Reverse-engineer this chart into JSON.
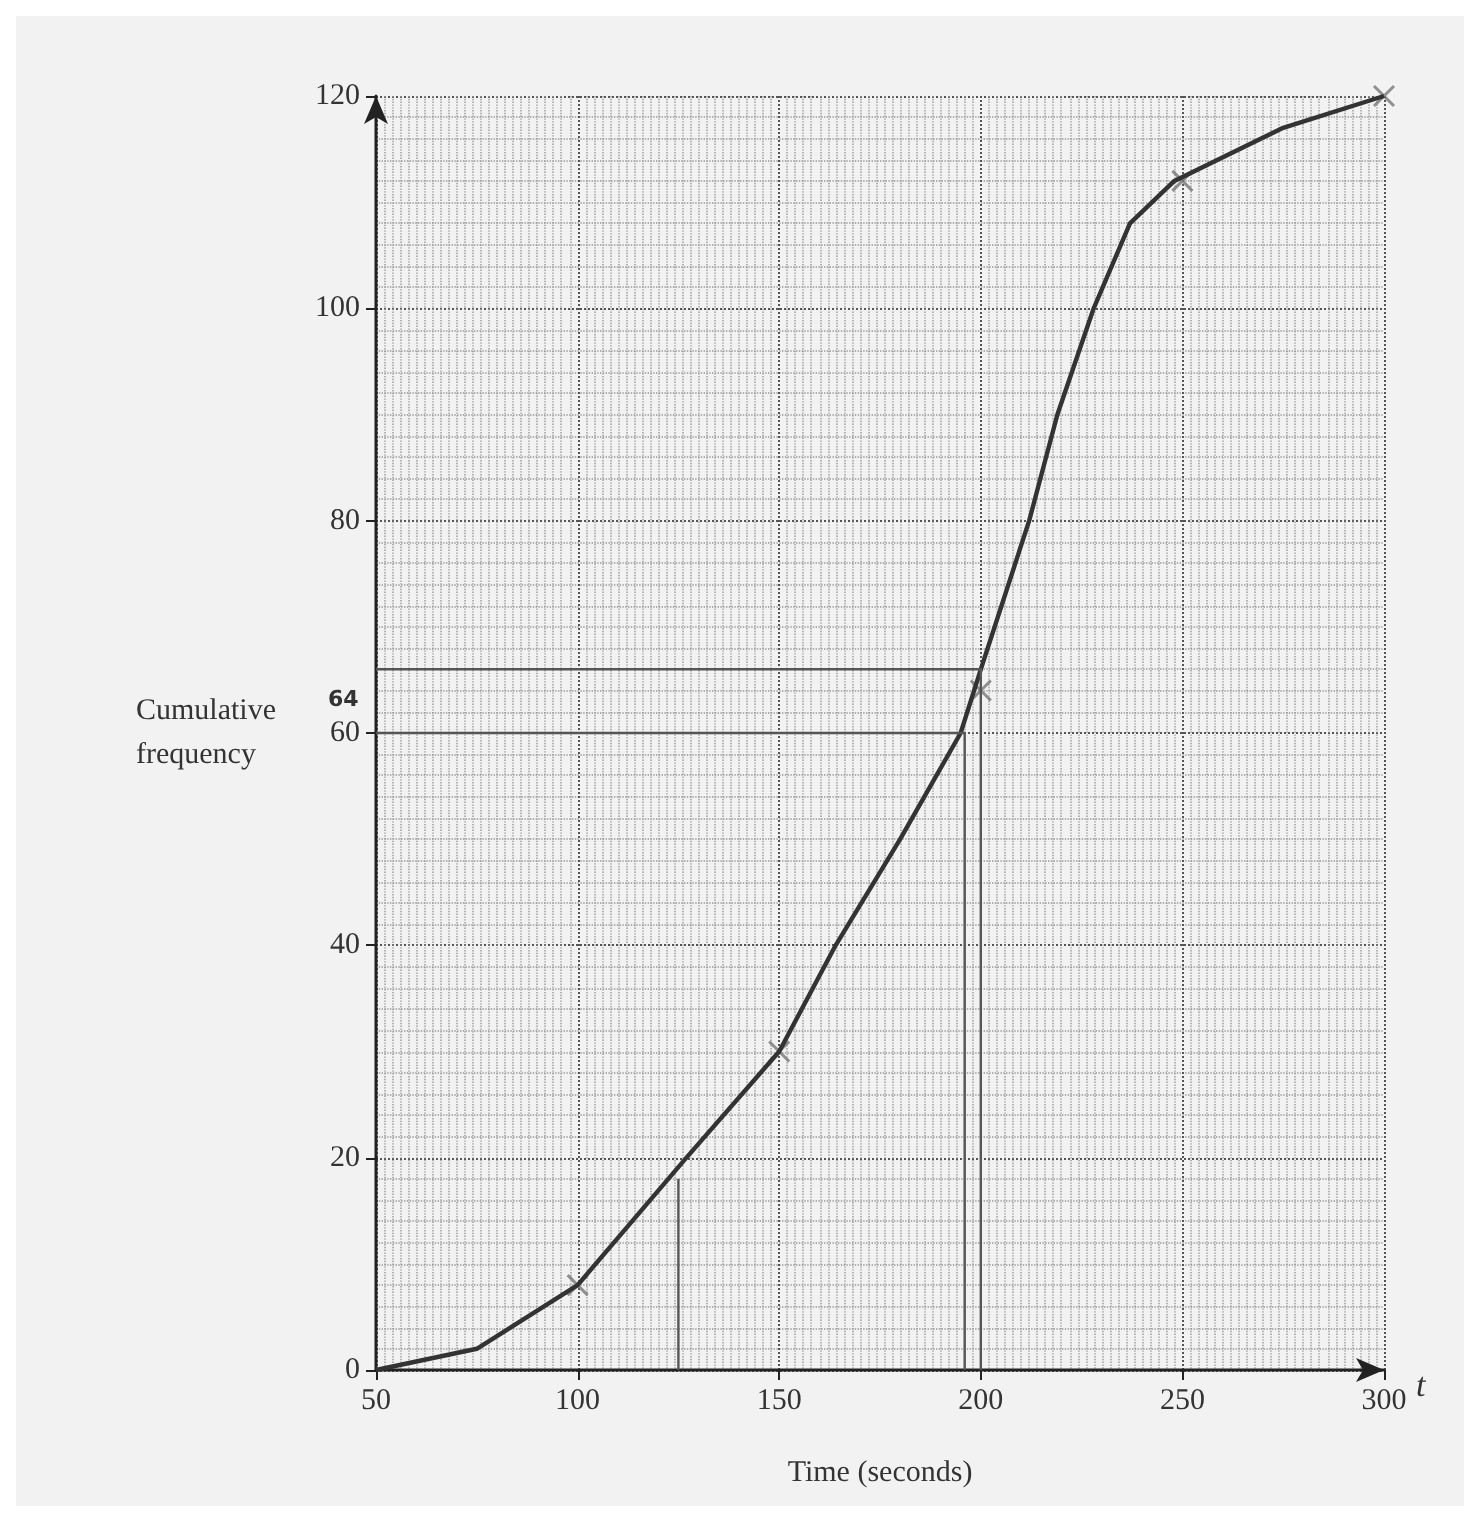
{
  "chart_data": {
    "type": "line",
    "xlabel": "Time (seconds)",
    "ylabel": "Cumulative\nfrequency",
    "xlim": [
      50,
      300
    ],
    "xticks": [
      50,
      100,
      150,
      200,
      250,
      300
    ],
    "ylim": [
      0,
      120
    ],
    "yticks": [
      0,
      20,
      40,
      60,
      80,
      100,
      120
    ],
    "grid": true,
    "annotations": [
      "t",
      "64"
    ],
    "series": [
      {
        "color": "#333333",
        "x": [
          50,
          75,
          100,
          127,
          150,
          164,
          180,
          195,
          200,
          212,
          219,
          228,
          237,
          248,
          275,
          300
        ],
        "values": [
          0,
          2,
          8,
          20,
          30,
          40,
          50,
          60,
          66,
          80,
          90,
          100,
          108,
          112,
          117,
          120
        ]
      },
      {
        "type": "scatter",
        "marker": "cross",
        "color": "#777777",
        "x": [
          100,
          150,
          200,
          250,
          300
        ],
        "values": [
          8,
          30,
          64,
          112,
          120
        ]
      },
      {
        "type": "line",
        "color": "#555555",
        "x": [
          125,
          125
        ],
        "values": [
          0,
          18
        ]
      },
      {
        "type": "line",
        "color": "#555555",
        "x": [
          196,
          196,
          50
        ],
        "values": [
          0,
          60,
          60
        ]
      },
      {
        "type": "line",
        "color": "#555555",
        "x": [
          200,
          200,
          50
        ],
        "values": [
          0,
          66,
          66
        ]
      }
    ]
  }
}
